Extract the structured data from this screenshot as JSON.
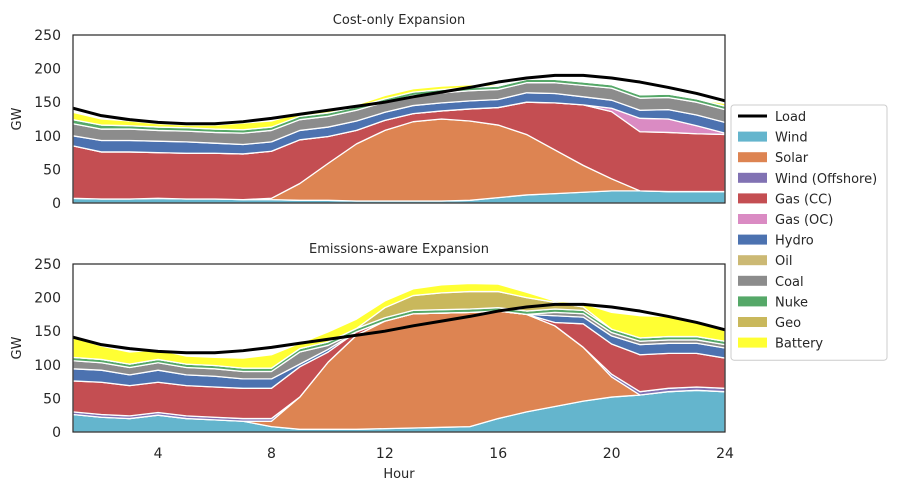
{
  "chart_data": {
    "type": "area",
    "xlabel": "Hour",
    "ylabel": "GW",
    "xlim": [
      1,
      24
    ],
    "ylim": [
      0,
      250
    ],
    "xticks": [
      4,
      8,
      12,
      16,
      20,
      24
    ],
    "xtick_labels": [
      "4",
      "8",
      "12",
      "16",
      "20",
      "24"
    ],
    "yticks": [
      0,
      50,
      100,
      150,
      200,
      250
    ],
    "ytick_labels": [
      "0",
      "50",
      "100",
      "150",
      "200",
      "250"
    ],
    "hours": [
      1,
      2,
      3,
      4,
      5,
      6,
      7,
      8,
      9,
      10,
      11,
      12,
      13,
      14,
      15,
      16,
      17,
      18,
      19,
      20,
      21,
      22,
      23,
      24
    ],
    "legend": {
      "placement": "right",
      "entries": [
        {
          "key": "load",
          "label": "Load",
          "color": "#000000",
          "style": "line"
        },
        {
          "key": "wind",
          "label": "Wind",
          "color": "#64b5cd"
        },
        {
          "key": "solar",
          "label": "Solar",
          "color": "#dd8452"
        },
        {
          "key": "wind_off",
          "label": "Wind (Offshore)",
          "color": "#8172b3"
        },
        {
          "key": "gas_cc",
          "label": "Gas (CC)",
          "color": "#c44e52"
        },
        {
          "key": "gas_oc",
          "label": "Gas (OC)",
          "color": "#da8bc3"
        },
        {
          "key": "hydro",
          "label": "Hydro",
          "color": "#4c72b0"
        },
        {
          "key": "oil",
          "label": "Oil",
          "color": "#ccb974"
        },
        {
          "key": "coal",
          "label": "Coal",
          "color": "#8c8c8c"
        },
        {
          "key": "nuke",
          "label": "Nuke",
          "color": "#55a868"
        },
        {
          "key": "geo",
          "label": "Geo",
          "color": "#c9b85c"
        },
        {
          "key": "battery",
          "label": "Battery",
          "color": "#ffff33"
        }
      ]
    },
    "panels": [
      {
        "title": "Cost-only Expansion",
        "load": [
          141,
          130,
          124,
          120,
          118,
          118,
          121,
          126,
          132,
          138,
          144,
          150,
          158,
          165,
          172,
          180,
          186,
          190,
          190,
          186,
          180,
          172,
          163,
          152
        ],
        "stack": [
          {
            "key": "wind",
            "values": [
              7,
              6,
              6,
              7,
              6,
              6,
              5,
              5,
              4,
              4,
              3,
              3,
              3,
              3,
              4,
              8,
              12,
              14,
              16,
              18,
              18,
              17,
              17,
              17
            ]
          },
          {
            "key": "solar",
            "values": [
              0,
              0,
              0,
              0,
              0,
              0,
              0,
              2,
              25,
              55,
              85,
              105,
              118,
              122,
              118,
              108,
              90,
              65,
              40,
              18,
              0,
              0,
              0,
              0
            ]
          },
          {
            "key": "wind_off",
            "values": [
              0,
              0,
              0,
              0,
              0,
              0,
              0,
              0,
              0,
              0,
              0,
              0,
              0,
              0,
              0,
              0,
              0,
              0,
              0,
              0,
              0,
              0,
              0,
              0
            ]
          },
          {
            "key": "gas_cc",
            "values": [
              78,
              70,
              70,
              68,
              68,
              68,
              68,
              70,
              65,
              40,
              20,
              15,
              12,
              12,
              18,
              26,
              48,
              70,
              90,
              100,
              88,
              88,
              86,
              85
            ]
          },
          {
            "key": "gas_oc",
            "values": [
              0,
              0,
              0,
              0,
              0,
              0,
              0,
              0,
              0,
              0,
              0,
              0,
              0,
              0,
              0,
              0,
              0,
              0,
              0,
              5,
              20,
              20,
              12,
              2
            ]
          },
          {
            "key": "hydro",
            "values": [
              15,
              17,
              17,
              17,
              17,
              15,
              14,
              14,
              14,
              14,
              14,
              12,
              12,
              12,
              12,
              12,
              14,
              14,
              12,
              12,
              12,
              14,
              16,
              16
            ]
          },
          {
            "key": "oil",
            "values": [
              0,
              0,
              0,
              0,
              0,
              0,
              0,
              0,
              0,
              0,
              0,
              0,
              0,
              0,
              0,
              0,
              0,
              0,
              0,
              0,
              0,
              0,
              0,
              0
            ]
          },
          {
            "key": "coal",
            "values": [
              18,
              17,
              17,
              16,
              16,
              16,
              17,
              17,
              16,
              16,
              16,
              15,
              15,
              15,
              15,
              15,
              15,
              16,
              17,
              18,
              18,
              18,
              19,
              19
            ]
          },
          {
            "key": "nuke",
            "values": [
              6,
              6,
              5,
              5,
              5,
              5,
              5,
              5,
              5,
              5,
              5,
              5,
              5,
              5,
              5,
              5,
              5,
              5,
              5,
              5,
              5,
              5,
              5,
              5
            ]
          },
          {
            "key": "geo",
            "values": [
              0,
              0,
              0,
              0,
              0,
              0,
              0,
              0,
              0,
              0,
              0,
              0,
              0,
              0,
              0,
              0,
              0,
              0,
              0,
              0,
              0,
              0,
              0,
              0
            ]
          },
          {
            "key": "battery",
            "values": [
              11,
              9,
              7,
              5,
              4,
              6,
              10,
              9,
              5,
              5,
              3,
              5,
              5,
              5,
              4,
              2,
              1,
              0,
              0,
              0,
              0,
              0,
              0,
              4
            ]
          }
        ]
      },
      {
        "title": "Emissions-aware Expansion",
        "load": [
          141,
          130,
          124,
          120,
          118,
          118,
          121,
          126,
          132,
          138,
          144,
          150,
          158,
          165,
          172,
          180,
          186,
          190,
          190,
          186,
          180,
          172,
          163,
          152
        ],
        "stack": [
          {
            "key": "wind",
            "values": [
              26,
              22,
              20,
              25,
              20,
              18,
              16,
              8,
              4,
              4,
              4,
              5,
              6,
              7,
              8,
              20,
              30,
              38,
              46,
              52,
              55,
              60,
              62,
              60
            ]
          },
          {
            "key": "solar",
            "values": [
              0,
              0,
              0,
              0,
              0,
              0,
              0,
              8,
              48,
              100,
              140,
              160,
              170,
              170,
              170,
              160,
              145,
              120,
              80,
              30,
              0,
              0,
              0,
              0
            ]
          },
          {
            "key": "wind_off",
            "values": [
              4,
              4,
              4,
              4,
              4,
              4,
              4,
              4,
              0,
              0,
              0,
              0,
              0,
              0,
              0,
              0,
              0,
              0,
              0,
              4,
              5,
              5,
              5,
              5
            ]
          },
          {
            "key": "gas_cc",
            "values": [
              46,
              48,
              45,
              45,
              45,
              45,
              45,
              45,
              45,
              15,
              5,
              0,
              0,
              0,
              0,
              0,
              0,
              5,
              35,
              45,
              55,
              52,
              50,
              45
            ]
          },
          {
            "key": "gas_oc",
            "values": [
              0,
              0,
              0,
              0,
              0,
              0,
              0,
              0,
              0,
              0,
              0,
              0,
              0,
              0,
              0,
              0,
              0,
              0,
              0,
              0,
              0,
              0,
              0,
              0
            ]
          },
          {
            "key": "hydro",
            "values": [
              18,
              18,
              16,
              18,
              16,
              16,
              14,
              14,
              4,
              4,
              0,
              0,
              0,
              0,
              0,
              0,
              0,
              10,
              10,
              12,
              15,
              15,
              15,
              15
            ]
          },
          {
            "key": "oil",
            "values": [
              0,
              0,
              0,
              0,
              0,
              0,
              0,
              0,
              0,
              0,
              0,
              0,
              0,
              0,
              0,
              0,
              0,
              0,
              0,
              0,
              0,
              0,
              0,
              0
            ]
          },
          {
            "key": "coal",
            "values": [
              12,
              11,
              11,
              11,
              11,
              11,
              11,
              11,
              18,
              6,
              0,
              0,
              0,
              0,
              0,
              0,
              0,
              5,
              5,
              5,
              5,
              5,
              5,
              5
            ]
          },
          {
            "key": "nuke",
            "values": [
              5,
              5,
              5,
              5,
              5,
              5,
              5,
              5,
              5,
              5,
              5,
              5,
              5,
              5,
              5,
              5,
              5,
              5,
              5,
              5,
              5,
              5,
              5,
              5
            ]
          },
          {
            "key": "geo",
            "values": [
              0,
              0,
              0,
              0,
              0,
              0,
              0,
              0,
              0,
              0,
              0,
              15,
              22,
              25,
              26,
              24,
              20,
              10,
              5,
              0,
              0,
              0,
              0,
              0
            ]
          },
          {
            "key": "battery",
            "values": [
              30,
              20,
              18,
              14,
              12,
              12,
              15,
              20,
              8,
              15,
              14,
              10,
              10,
              12,
              12,
              11,
              8,
              2,
              5,
              25,
              33,
              30,
              24,
              20
            ]
          }
        ]
      }
    ]
  }
}
